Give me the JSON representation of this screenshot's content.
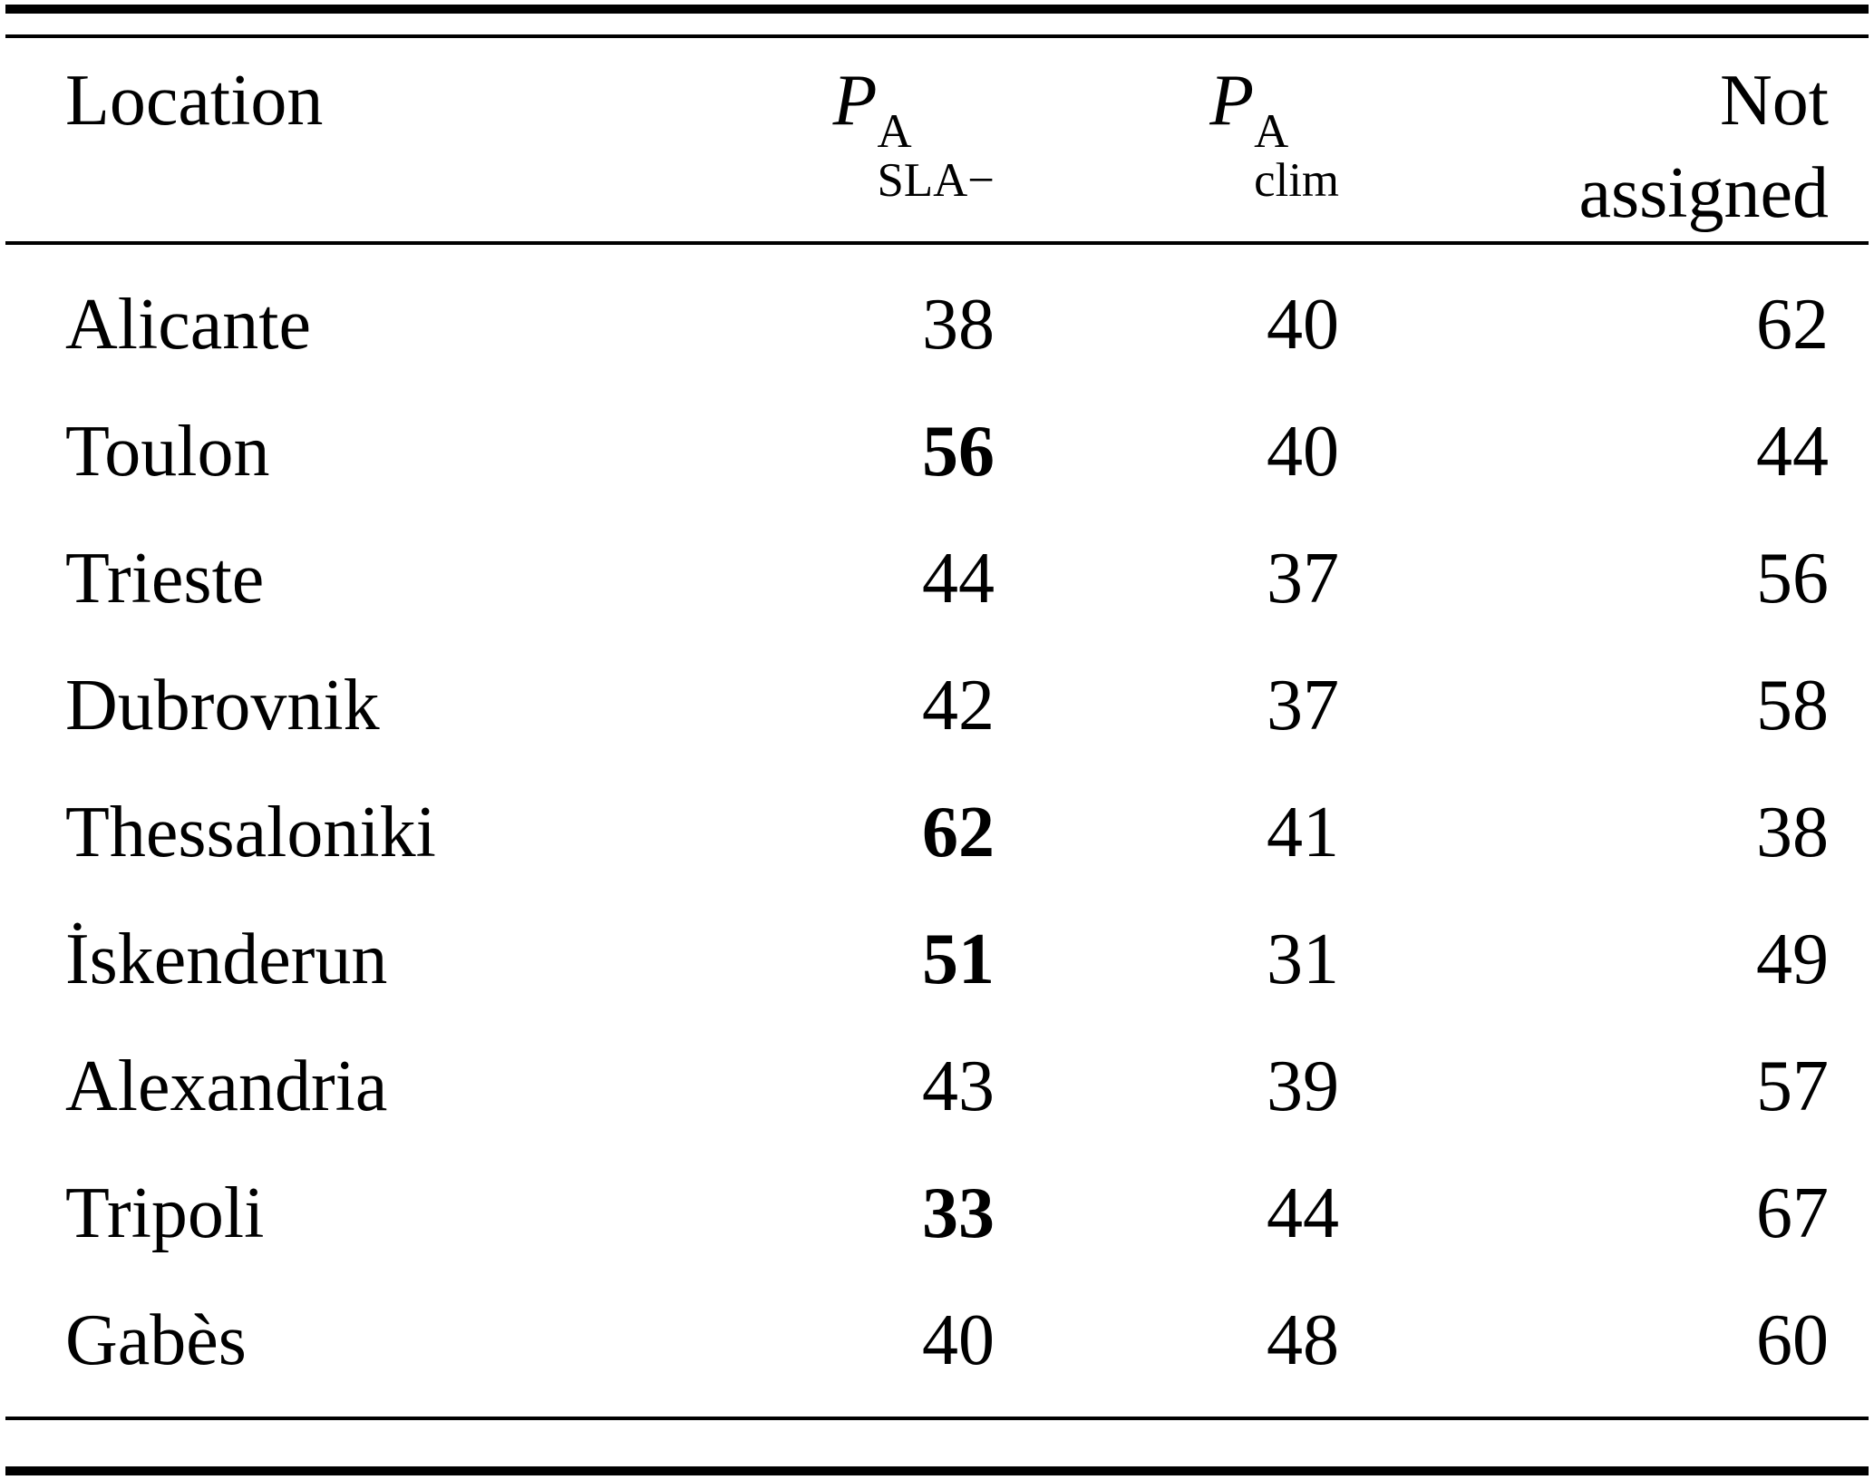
{
  "table": {
    "header": {
      "location": "Location",
      "p_sla": {
        "symbol": "P",
        "sup": "A",
        "sub": "SLA−"
      },
      "p_clim": {
        "symbol": "P",
        "sup": "A",
        "sub": "clim"
      },
      "not_assigned_line1": "Not",
      "not_assigned_line2": "assigned"
    },
    "rows": [
      {
        "location": "Alicante",
        "p_sla": "38",
        "p_clim": "40",
        "not_assigned": "62",
        "p_sla_bold": false
      },
      {
        "location": "Toulon",
        "p_sla": "56",
        "p_clim": "40",
        "not_assigned": "44",
        "p_sla_bold": true
      },
      {
        "location": "Trieste",
        "p_sla": "44",
        "p_clim": "37",
        "not_assigned": "56",
        "p_sla_bold": false
      },
      {
        "location": "Dubrovnik",
        "p_sla": "42",
        "p_clim": "37",
        "not_assigned": "58",
        "p_sla_bold": false
      },
      {
        "location": "Thessaloniki",
        "p_sla": "62",
        "p_clim": "41",
        "not_assigned": "38",
        "p_sla_bold": true
      },
      {
        "location": "İskenderun",
        "p_sla": "51",
        "p_clim": "31",
        "not_assigned": "49",
        "p_sla_bold": true
      },
      {
        "location": "Alexandria",
        "p_sla": "43",
        "p_clim": "39",
        "not_assigned": "57",
        "p_sla_bold": false
      },
      {
        "location": "Tripoli",
        "p_sla": "33",
        "p_clim": "44",
        "not_assigned": "67",
        "p_sla_bold": true
      },
      {
        "location": "Gabès",
        "p_sla": "40",
        "p_clim": "48",
        "not_assigned": "60",
        "p_sla_bold": false
      }
    ]
  }
}
